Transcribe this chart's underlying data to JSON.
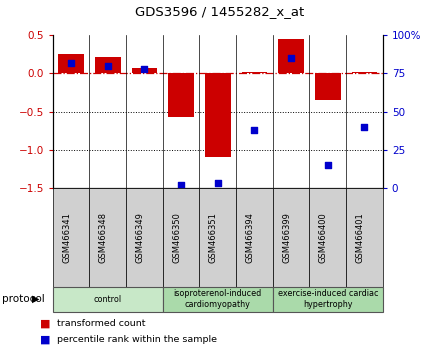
{
  "title": "GDS3596 / 1455282_x_at",
  "samples": [
    "GSM466341",
    "GSM466348",
    "GSM466349",
    "GSM466350",
    "GSM466351",
    "GSM466394",
    "GSM466399",
    "GSM466400",
    "GSM466401"
  ],
  "transformed_count": [
    0.25,
    0.22,
    0.07,
    -0.57,
    -1.1,
    0.02,
    0.45,
    -0.35,
    0.02
  ],
  "percentile_rank": [
    82,
    80,
    78,
    2,
    3,
    38,
    85,
    15,
    40
  ],
  "groups": [
    {
      "label": "control",
      "start": 0,
      "end": 3,
      "color": "#c8e8c8"
    },
    {
      "label": "isoproterenol-induced\ncardiomyopathy",
      "start": 3,
      "end": 6,
      "color": "#aadaaa"
    },
    {
      "label": "exercise-induced cardiac\nhypertrophy",
      "start": 6,
      "end": 9,
      "color": "#aadaaa"
    }
  ],
  "bar_color": "#cc0000",
  "dot_color": "#0000cc",
  "zero_line_color": "#cc0000",
  "left_ylim": [
    -1.5,
    0.5
  ],
  "right_ylim": [
    0,
    100
  ],
  "left_yticks": [
    -1.5,
    -1.0,
    -0.5,
    0.0,
    0.5
  ],
  "right_yticks": [
    0,
    25,
    50,
    75,
    100
  ],
  "right_yticklabels": [
    "0",
    "25",
    "50",
    "75",
    "100%"
  ],
  "legend_items": [
    {
      "label": "transformed count",
      "color": "#cc0000"
    },
    {
      "label": "percentile rank within the sample",
      "color": "#0000cc"
    }
  ],
  "protocol_label": "protocol",
  "figsize": [
    4.4,
    3.54
  ],
  "dpi": 100
}
